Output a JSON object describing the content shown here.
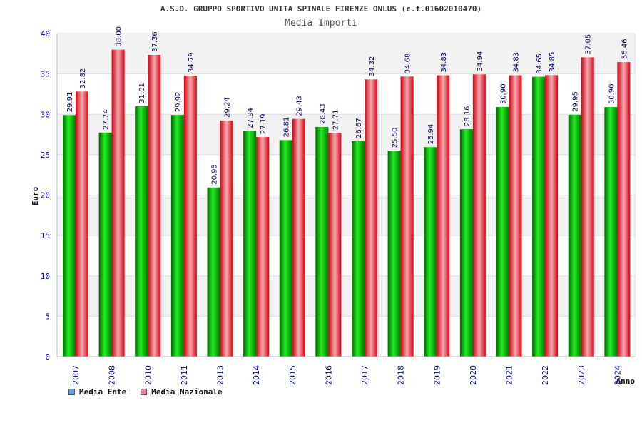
{
  "chart_data": {
    "type": "bar",
    "title": "A.S.D. GRUPPO SPORTIVO UNITA SPINALE FIRENZE ONLUS (c.f.01602010470)",
    "subtitle": "Media Importi",
    "xlabel": "Anno",
    "ylabel": "Euro",
    "ylim": [
      0,
      40
    ],
    "yticks": [
      0,
      5,
      10,
      15,
      20,
      25,
      30,
      35,
      40
    ],
    "grid": true,
    "legend_position": "bottom-left",
    "categories": [
      "2007",
      "2008",
      "2010",
      "2011",
      "2013",
      "2014",
      "2015",
      "2016",
      "2017",
      "2018",
      "2019",
      "2020",
      "2021",
      "2022",
      "2023",
      "2024"
    ],
    "series": [
      {
        "name": "Media Ente",
        "color": "#00aa00",
        "legend_color": "#5599ff",
        "values": [
          29.91,
          27.74,
          31.01,
          29.92,
          20.95,
          27.94,
          26.81,
          28.43,
          26.67,
          25.5,
          25.94,
          28.16,
          30.9,
          34.65,
          29.95,
          30.9
        ],
        "labels": [
          "29.91",
          "27.74",
          "31.01",
          "29.92",
          "20.95",
          "27.94",
          "26.81",
          "28.43",
          "26.67",
          "25.50",
          "25.94",
          "28.16",
          "30.90",
          "34.65",
          "29.95",
          "30.90"
        ]
      },
      {
        "name": "Media Nazionale",
        "color": "#ee1122",
        "legend_color": "#dd88aa",
        "values": [
          32.82,
          38.0,
          37.36,
          34.79,
          29.24,
          27.19,
          29.43,
          27.71,
          34.32,
          34.68,
          34.83,
          34.94,
          34.83,
          34.85,
          37.05,
          36.46
        ],
        "labels": [
          "32.82",
          "38.00",
          "37.36",
          "34.79",
          "29.24",
          "27.19",
          "29.43",
          "27.71",
          "34.32",
          "34.68",
          "34.83",
          "34.94",
          "34.83",
          "34.85",
          "37.05",
          "36.46"
        ]
      }
    ]
  }
}
